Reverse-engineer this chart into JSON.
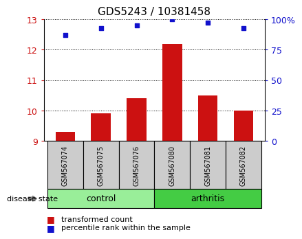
{
  "title": "GDS5243 / 10381458",
  "samples": [
    "GSM567074",
    "GSM567075",
    "GSM567076",
    "GSM567080",
    "GSM567081",
    "GSM567082"
  ],
  "transformed_counts": [
    9.3,
    9.9,
    10.4,
    12.2,
    10.5,
    10.0
  ],
  "percentile_ranks": [
    87,
    93,
    95,
    100,
    97,
    93
  ],
  "ylim_left": [
    9,
    13
  ],
  "ylim_right": [
    0,
    100
  ],
  "yticks_left": [
    9,
    10,
    11,
    12,
    13
  ],
  "yticks_right": [
    0,
    25,
    50,
    75,
    100
  ],
  "ytick_labels_right": [
    "0",
    "25",
    "50",
    "75",
    "100%"
  ],
  "bar_color": "#cc1111",
  "dot_color": "#1111cc",
  "bar_width": 0.55,
  "baseline": 9,
  "groups": [
    {
      "label": "control",
      "start": 0,
      "end": 3,
      "color": "#99ee99"
    },
    {
      "label": "arthritis",
      "start": 3,
      "end": 6,
      "color": "#44cc44"
    }
  ],
  "group_label_text": "disease state",
  "legend_items": [
    {
      "label": "transformed count",
      "color": "#cc1111"
    },
    {
      "label": "percentile rank within the sample",
      "color": "#1111cc"
    }
  ],
  "grid_color": "black",
  "tick_label_color_left": "#cc1111",
  "tick_label_color_right": "#1111cc",
  "sample_box_color": "#cccccc"
}
